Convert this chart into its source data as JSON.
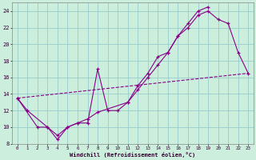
{
  "xlabel": "Windchill (Refroidissement éolien,°C)",
  "bg_color": "#cceedd",
  "line_color": "#880088",
  "grid_color": "#99cccc",
  "xlim": [
    -0.5,
    23.5
  ],
  "ylim": [
    8,
    25
  ],
  "xticks": [
    0,
    1,
    2,
    3,
    4,
    5,
    6,
    7,
    8,
    9,
    10,
    11,
    12,
    13,
    14,
    15,
    16,
    17,
    18,
    19,
    20,
    21,
    22,
    23
  ],
  "yticks": [
    8,
    10,
    12,
    14,
    16,
    18,
    20,
    22,
    24
  ],
  "line1_x": [
    0,
    1,
    3,
    4,
    5,
    6,
    7,
    8,
    9,
    10,
    11,
    12,
    13,
    14,
    15,
    16,
    17,
    18,
    19
  ],
  "line1_y": [
    13.5,
    12,
    10,
    8.5,
    10,
    10.5,
    10.5,
    17,
    12,
    12,
    13,
    15,
    16.5,
    18.5,
    19,
    21,
    22.5,
    24,
    24.5
  ],
  "line2_x": [
    0,
    2,
    3,
    4,
    5,
    6,
    7,
    8,
    11,
    12,
    13,
    14,
    15,
    16,
    17,
    18,
    19,
    20,
    21,
    22,
    23
  ],
  "line2_y": [
    13.5,
    10,
    10,
    9,
    10,
    10.5,
    11,
    11.8,
    13,
    14.5,
    16,
    17.5,
    19,
    21,
    22,
    23.5,
    24,
    23,
    22.5,
    19,
    16.5
  ],
  "line3_x": [
    0,
    23
  ],
  "line3_y": [
    13.5,
    16.5
  ]
}
